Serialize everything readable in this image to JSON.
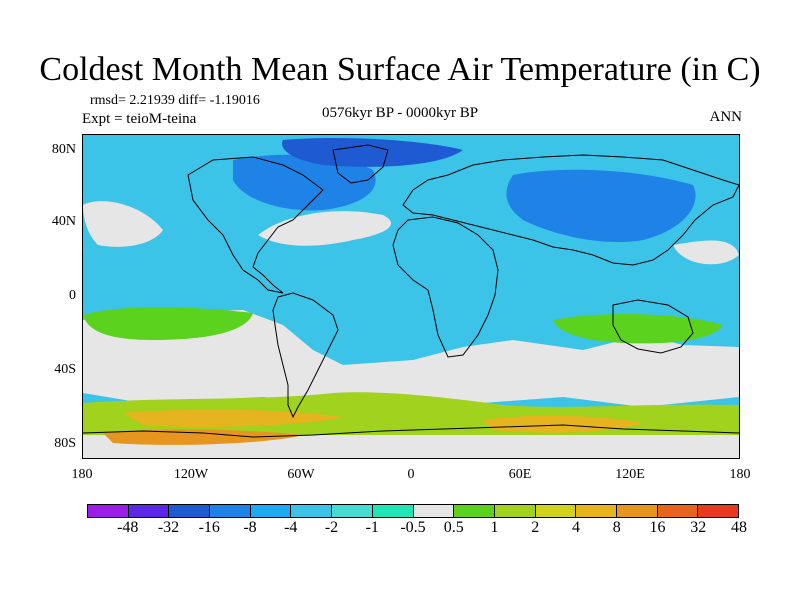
{
  "title": "Coldest Month Mean Surface Air Temperature (in C)",
  "stats_text": "rmsd= 2.21939  diff= -1.19016",
  "expt_text": "Expt = teioM-teina",
  "period_text": "0576kyr BP - 0000kyr BP",
  "season_text": "ANN",
  "map": {
    "lat_ticks": [
      "80N",
      "40N",
      "0",
      "40S",
      "80S"
    ],
    "lon_ticks": [
      "180",
      "120W",
      "60W",
      "0",
      "60E",
      "120E",
      "180"
    ],
    "land_outline_color": "#000000",
    "ocean_base_color": "#3cc3e8"
  },
  "colorbar": {
    "colors": [
      "#9a1ee6",
      "#5a28e6",
      "#1e5ad2",
      "#1e82e6",
      "#1eaaf0",
      "#3cc3e8",
      "#46dcd2",
      "#1ee6b4",
      "#e6e6e6",
      "#5ad21e",
      "#a0d21e",
      "#d2d21e",
      "#e6b41e",
      "#e6961e",
      "#e6641e",
      "#e63c1e"
    ],
    "labels": [
      "-48",
      "-32",
      "-16",
      "-8",
      "-4",
      "-2",
      "-1",
      "-0.5",
      "0.5",
      "1",
      "2",
      "4",
      "8",
      "16",
      "32",
      "48"
    ]
  }
}
